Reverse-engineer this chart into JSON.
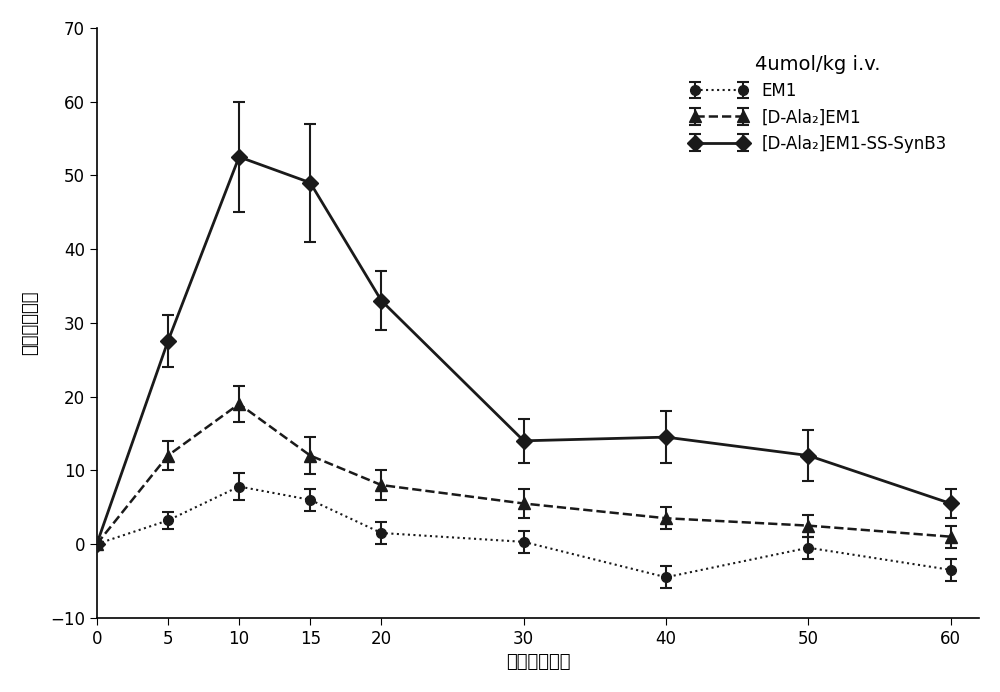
{
  "title": "4umol/kg i.v.",
  "xlabel": "时间（分钟）",
  "ylabel": "最大镇痛效应",
  "xlim": [
    0,
    62
  ],
  "ylim": [
    -10,
    70
  ],
  "xticks": [
    0,
    5,
    10,
    15,
    20,
    30,
    40,
    50,
    60
  ],
  "yticks": [
    -10,
    0,
    10,
    20,
    30,
    40,
    50,
    60,
    70
  ],
  "time": [
    0,
    5,
    10,
    15,
    20,
    30,
    40,
    50,
    60
  ],
  "em1_y": [
    0,
    3.2,
    7.8,
    6.0,
    1.5,
    0.3,
    -4.5,
    -0.5,
    -3.5
  ],
  "em1_err": [
    0,
    1.2,
    1.8,
    1.5,
    1.5,
    1.5,
    1.5,
    1.5,
    1.5
  ],
  "dala_y": [
    0,
    12.0,
    19.0,
    12.0,
    8.0,
    5.5,
    3.5,
    2.5,
    1.0
  ],
  "dala_err": [
    0,
    2.0,
    2.5,
    2.5,
    2.0,
    2.0,
    1.5,
    1.5,
    1.5
  ],
  "synb3_y": [
    0,
    27.5,
    52.5,
    49.0,
    33.0,
    14.0,
    14.5,
    12.0,
    5.5
  ],
  "synb3_err": [
    0,
    3.5,
    7.5,
    8.0,
    4.0,
    3.0,
    3.5,
    3.5,
    2.0
  ],
  "em1_label": "EM1",
  "dala_label": "[D-Ala₂]EM1",
  "synb3_label": "[D-Ala₂]EM1-SS-SynB3",
  "line_color": "#1a1a1a",
  "bg_color": "#ffffff",
  "title_fontsize": 14,
  "label_fontsize": 13,
  "tick_fontsize": 12,
  "legend_fontsize": 12
}
